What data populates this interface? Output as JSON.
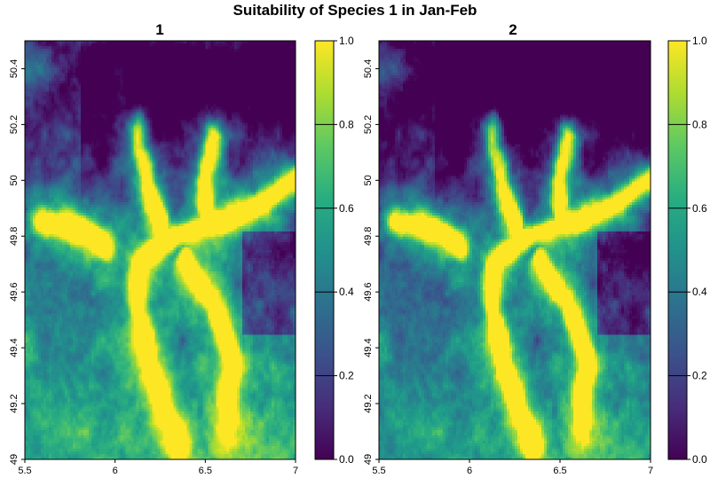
{
  "title": "Suitability of Species 1 in Jan-Feb",
  "chart_data": [
    {
      "type": "heatmap",
      "title": "1",
      "x_ticks": [
        "5.5",
        "6",
        "6.5",
        "7"
      ],
      "x_tick_values": [
        5.5,
        6.0,
        6.5,
        7.0
      ],
      "y_ticks": [
        "49",
        "49.2",
        "49.4",
        "49.6",
        "49.8",
        "50",
        "50.2",
        "50.4"
      ],
      "y_tick_values": [
        49.0,
        49.2,
        49.4,
        49.6,
        49.8,
        50.0,
        50.2,
        50.4
      ],
      "xlim": [
        5.5,
        7.0
      ],
      "ylim": [
        49.0,
        50.5
      ],
      "value_range": [
        0,
        1
      ],
      "colorbar_ticks": [
        "0.0",
        "0.2",
        "0.4",
        "0.6",
        "0.8",
        "1.0"
      ],
      "colorbar_tick_values": [
        0.0,
        0.2,
        0.4,
        0.6,
        0.8,
        1.0
      ],
      "colormap": "viridis"
    },
    {
      "type": "heatmap",
      "title": "2",
      "x_ticks": [
        "5.5",
        "6",
        "6.5",
        "7"
      ],
      "x_tick_values": [
        5.5,
        6.0,
        6.5,
        7.0
      ],
      "y_ticks": [
        "49",
        "49.2",
        "49.4",
        "49.6",
        "49.8",
        "50",
        "50.2",
        "50.4"
      ],
      "y_tick_values": [
        49.0,
        49.2,
        49.4,
        49.6,
        49.8,
        50.0,
        50.2,
        50.4
      ],
      "xlim": [
        5.5,
        7.0
      ],
      "ylim": [
        49.0,
        50.5
      ],
      "value_range": [
        0,
        1
      ],
      "colorbar_ticks": [
        "0.0",
        "0.2",
        "0.4",
        "0.6",
        "0.8",
        "1.0"
      ],
      "colorbar_tick_values": [
        0.0,
        0.2,
        0.4,
        0.6,
        0.8,
        1.0
      ],
      "colormap": "viridis"
    }
  ]
}
